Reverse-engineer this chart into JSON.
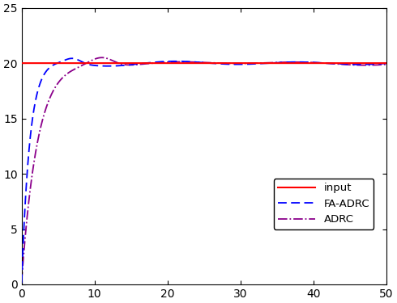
{
  "xlim": [
    0,
    50
  ],
  "ylim": [
    0,
    25
  ],
  "xticks": [
    0,
    10,
    20,
    30,
    40,
    50
  ],
  "yticks": [
    0,
    5,
    10,
    15,
    20,
    25
  ],
  "input_value": 20,
  "input_color": "#FF0000",
  "fa_adrc_color": "#0000FF",
  "adrc_color": "#8B008B",
  "legend_labels": [
    "input",
    "FA-ADRC",
    "ADRC"
  ],
  "figsize": [
    4.9,
    3.75
  ],
  "dpi": 100
}
